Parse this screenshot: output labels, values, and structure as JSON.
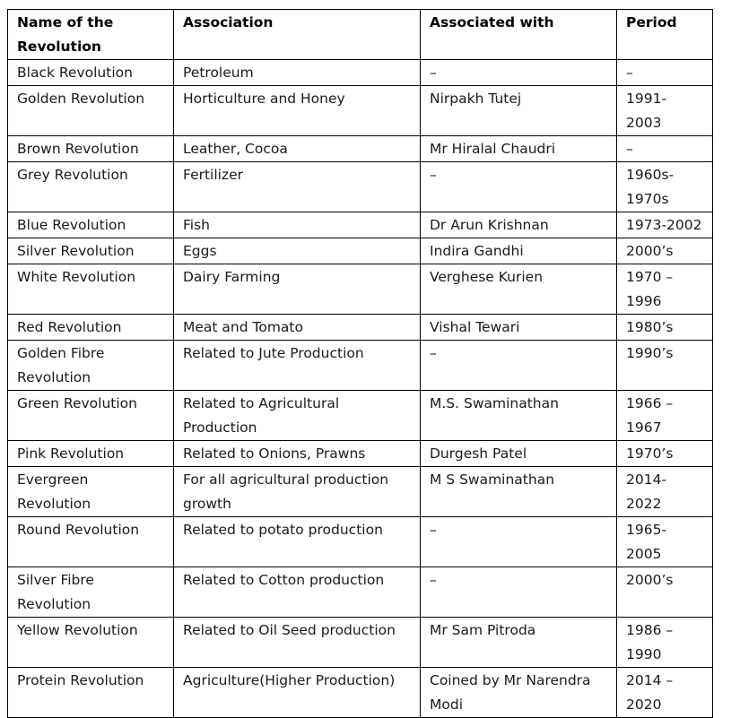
{
  "headers": {
    "name": "Name of the Revolution",
    "association": "Association",
    "associated_with": "Associated with",
    "period": "Period"
  },
  "rows": [
    {
      "name": "Black Revolution",
      "association": "Petroleum",
      "associated_with": "–",
      "period": "–"
    },
    {
      "name": "Golden Revolution",
      "association": "Horticulture and Honey",
      "associated_with": "Nirpakh Tutej",
      "period": "1991- 2003"
    },
    {
      "name": "Brown Revolution",
      "association": "Leather, Cocoa",
      "associated_with": "Mr Hiralal Chaudri",
      "period": "–"
    },
    {
      "name": "Grey Revolution",
      "association": "Fertilizer",
      "associated_with": "–",
      "period": "1960s-1970s"
    },
    {
      "name": "Blue Revolution",
      "association": "Fish",
      "associated_with": "Dr Arun Krishnan",
      "period": "1973-2002"
    },
    {
      "name": "Silver Revolution",
      "association": "Eggs",
      "associated_with": "Indira Gandhi",
      "period": "2000’s"
    },
    {
      "name": "White Revolution",
      "association": "Dairy Farming",
      "associated_with": "Verghese Kurien",
      "period": "1970 – 1996"
    },
    {
      "name": "Red Revolution",
      "association": "Meat and Tomato",
      "associated_with": "Vishal Tewari",
      "period": "1980’s"
    },
    {
      "name": "Golden Fibre Revolution",
      "association": "Related to Jute Production",
      "associated_with": "–",
      "period": "1990’s"
    },
    {
      "name": "Green Revolution",
      "association": "Related to Agricultural Production",
      "associated_with": "M.S. Swaminathan",
      "period": "1966 – 1967"
    },
    {
      "name": "Pink Revolution",
      "association": "Related to Onions, Prawns",
      "associated_with": "Durgesh Patel",
      "period": "1970’s"
    },
    {
      "name": "Evergreen Revolution",
      "association": "For all agricultural production growth",
      "associated_with": "M S Swaminathan",
      "period": "2014- 2022"
    },
    {
      "name": "Round Revolution",
      "association": "Related to potato production",
      "associated_with": "–",
      "period": "1965- 2005"
    },
    {
      "name": "Silver Fibre Revolution",
      "association": "Related to Cotton production",
      "associated_with": "–",
      "period": "2000’s"
    },
    {
      "name": "Yellow Revolution",
      "association": "Related to Oil Seed production",
      "associated_with": "Mr Sam Pitroda",
      "period": "1986 – 1990"
    },
    {
      "name": "Protein Revolution",
      "association": "Agriculture(Higher Production)",
      "associated_with": "Coined by Mr Narendra Modi",
      "period": "2014 – 2020"
    }
  ]
}
